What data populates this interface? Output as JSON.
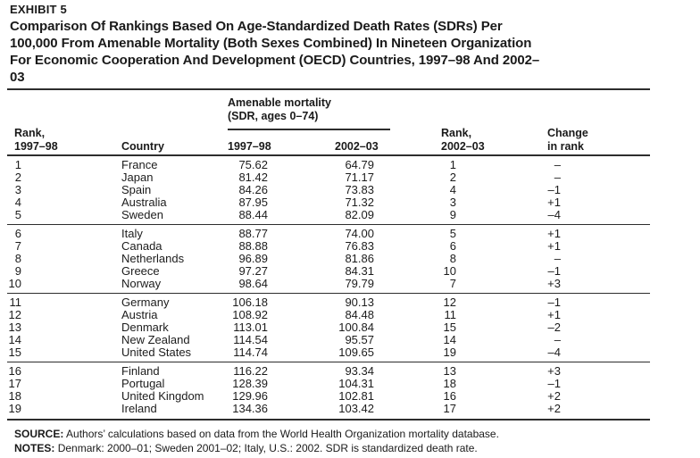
{
  "header": {
    "exhibit_label": "EXHIBIT 5",
    "title_lines": [
      "Comparison Of Rankings Based On Age-Standardized Death Rates (SDRs) Per",
      "100,000 From Amenable Mortality (Both Sexes Combined) In Nineteen Organization",
      "For Economic Cooperation And Development (OECD) Countries, 1997–98 And 2002–",
      "03"
    ]
  },
  "table": {
    "spanner": {
      "line1": "Amenable mortality",
      "line2": "(SDR, ages 0–74)"
    },
    "headers": {
      "rank_9798": [
        "Rank,",
        "1997–98"
      ],
      "country": "Country",
      "sdr_9798": "1997–98",
      "sdr_0203": "2002–03",
      "rank_0203": [
        "Rank,",
        "2002–03"
      ],
      "change": [
        "Change",
        "in rank"
      ]
    },
    "groups": [
      {
        "rows": [
          {
            "rank1": "1",
            "country": "France",
            "sdr1": "75.62",
            "sdr2": "64.79",
            "rank2": "1",
            "change": "–"
          },
          {
            "rank1": "2",
            "country": "Japan",
            "sdr1": "81.42",
            "sdr2": "71.17",
            "rank2": "2",
            "change": "–"
          },
          {
            "rank1": "3",
            "country": "Spain",
            "sdr1": "84.26",
            "sdr2": "73.83",
            "rank2": "4",
            "change": "–1"
          },
          {
            "rank1": "4",
            "country": "Australia",
            "sdr1": "87.95",
            "sdr2": "71.32",
            "rank2": "3",
            "change": "+1"
          },
          {
            "rank1": "5",
            "country": "Sweden",
            "sdr1": "88.44",
            "sdr2": "82.09",
            "rank2": "9",
            "change": "–4"
          }
        ]
      },
      {
        "rows": [
          {
            "rank1": "6",
            "country": "Italy",
            "sdr1": "88.77",
            "sdr2": "74.00",
            "rank2": "5",
            "change": "+1"
          },
          {
            "rank1": "7",
            "country": "Canada",
            "sdr1": "88.88",
            "sdr2": "76.83",
            "rank2": "6",
            "change": "+1"
          },
          {
            "rank1": "8",
            "country": "Netherlands",
            "sdr1": "96.89",
            "sdr2": "81.86",
            "rank2": "8",
            "change": "–"
          },
          {
            "rank1": "9",
            "country": "Greece",
            "sdr1": "97.27",
            "sdr2": "84.31",
            "rank2": "10",
            "change": "–1"
          },
          {
            "rank1": "10",
            "country": "Norway",
            "sdr1": "98.64",
            "sdr2": "79.79",
            "rank2": "7",
            "change": "+3"
          }
        ]
      },
      {
        "rows": [
          {
            "rank1": "11",
            "country": "Germany",
            "sdr1": "106.18",
            "sdr2": "90.13",
            "rank2": "12",
            "change": "–1"
          },
          {
            "rank1": "12",
            "country": "Austria",
            "sdr1": "108.92",
            "sdr2": "84.48",
            "rank2": "11",
            "change": "+1"
          },
          {
            "rank1": "13",
            "country": "Denmark",
            "sdr1": "113.01",
            "sdr2": "100.84",
            "rank2": "15",
            "change": "–2"
          },
          {
            "rank1": "14",
            "country": "New Zealand",
            "sdr1": "114.54",
            "sdr2": "95.57",
            "rank2": "14",
            "change": "–"
          },
          {
            "rank1": "15",
            "country": "United States",
            "sdr1": "114.74",
            "sdr2": "109.65",
            "rank2": "19",
            "change": "–4"
          }
        ]
      },
      {
        "rows": [
          {
            "rank1": "16",
            "country": "Finland",
            "sdr1": "116.22",
            "sdr2": "93.34",
            "rank2": "13",
            "change": "+3"
          },
          {
            "rank1": "17",
            "country": "Portugal",
            "sdr1": "128.39",
            "sdr2": "104.31",
            "rank2": "18",
            "change": "–1"
          },
          {
            "rank1": "18",
            "country": "United Kingdom",
            "sdr1": "129.96",
            "sdr2": "102.81",
            "rank2": "16",
            "change": "+2"
          },
          {
            "rank1": "19",
            "country": "Ireland",
            "sdr1": "134.36",
            "sdr2": "103.42",
            "rank2": "17",
            "change": "+2"
          }
        ]
      }
    ]
  },
  "footer": {
    "source_label": "SOURCE:",
    "source_text": "Authors’ calculations based on data from the World Health Organization mortality database.",
    "notes_label": "NOTES:",
    "notes_text": "Denmark: 2000–01; Sweden 2001–02; Italy, U.S.: 2002. SDR is standardized death rate."
  },
  "colors": {
    "text": "#1a1a1a",
    "rule": "#2d2d2d",
    "background": "#ffffff"
  }
}
